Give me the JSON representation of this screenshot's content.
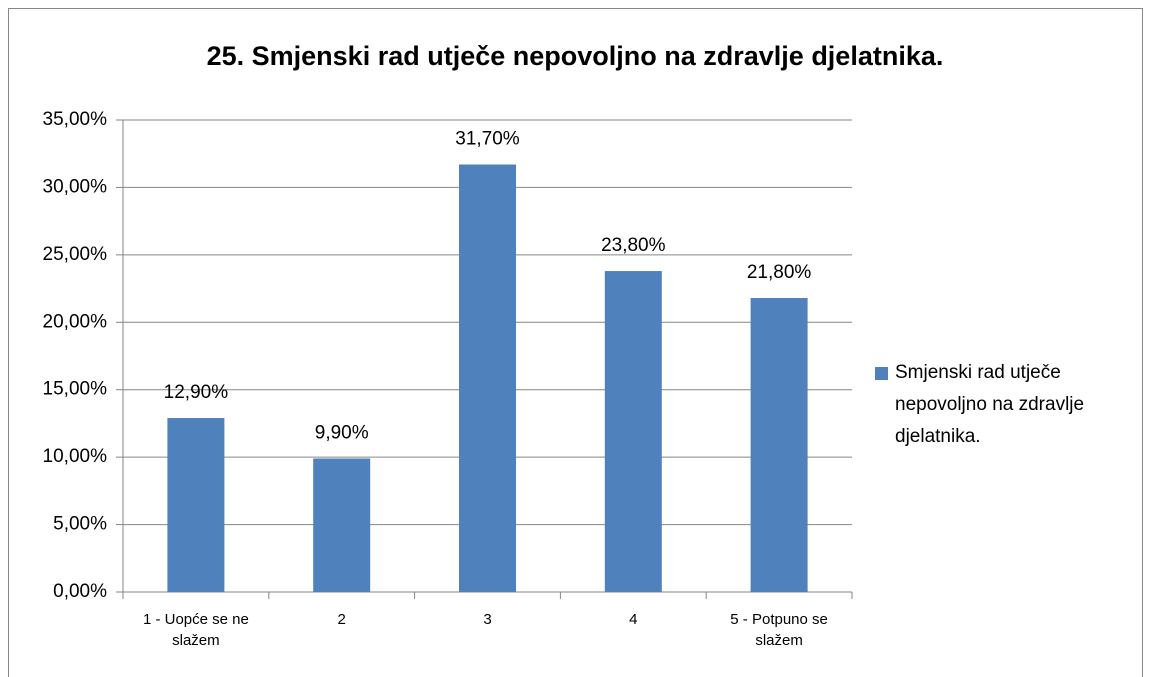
{
  "chart_data": {
    "type": "bar",
    "title": "25. Smjenski rad utječe nepovoljno na zdravlje djelatnika.",
    "categories": [
      "1 - Uopće se ne slažem",
      "2",
      "3",
      "4",
      "5 - Potpuno se slažem"
    ],
    "series": [
      {
        "name": "Smjenski rad utječe nepovoljno na zdravlje djelatnika.",
        "color": "#4f81bd",
        "values": [
          12.9,
          9.9,
          31.7,
          23.8,
          21.8
        ],
        "value_labels": [
          "12,90%",
          "9,90%",
          "31,70%",
          "23,80%",
          "21,80%"
        ]
      }
    ],
    "ylim": [
      0,
      35
    ],
    "yticks": [
      {
        "value": 0,
        "label": "0,00%"
      },
      {
        "value": 5,
        "label": "5,00%"
      },
      {
        "value": 10,
        "label": "10,00%"
      },
      {
        "value": 15,
        "label": "15,00%"
      },
      {
        "value": 20,
        "label": "20,00%"
      },
      {
        "value": 25,
        "label": "25,00%"
      },
      {
        "value": 30,
        "label": "30,00%"
      },
      {
        "value": 35,
        "label": "35,00%"
      }
    ],
    "grid": true,
    "legend": "right"
  }
}
